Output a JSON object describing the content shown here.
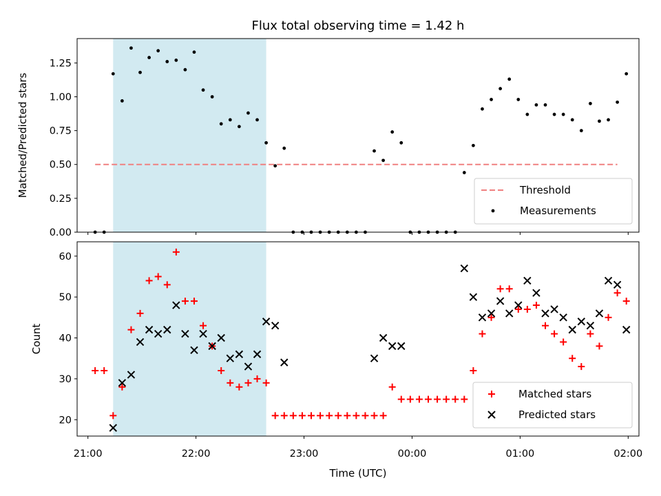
{
  "chart_data": {
    "type": "scatter",
    "title": "Flux total observing time = 1.42 h",
    "xlabel": "Time (UTC)",
    "x_ticks": [
      "21:00",
      "22:00",
      "23:00",
      "00:00",
      "01:00",
      "02:00"
    ],
    "shaded_region": {
      "start": "21:14",
      "end": "22:39",
      "color": "#add8e6"
    },
    "panels": [
      {
        "ylabel": "Matched/Predicted stars",
        "ylim": [
          0,
          1.43
        ],
        "y_ticks": [
          "0.00",
          "0.25",
          "0.50",
          "0.75",
          "1.00",
          "1.25"
        ],
        "threshold": {
          "name": "Threshold",
          "value": 0.5,
          "x_range": [
            "21:04",
            "01:54"
          ],
          "color": "#f08080"
        },
        "legend_position": "lower right",
        "series": [
          {
            "name": "Measurements",
            "marker": "dot",
            "color": "#000000",
            "points": [
              [
                "21:04",
                0
              ],
              [
                "21:09",
                0
              ],
              [
                "21:14",
                1.17
              ],
              [
                "21:19",
                0.97
              ],
              [
                "21:24",
                1.36
              ],
              [
                "21:29",
                1.18
              ],
              [
                "21:34",
                1.29
              ],
              [
                "21:39",
                1.34
              ],
              [
                "21:44",
                1.26
              ],
              [
                "21:49",
                1.27
              ],
              [
                "21:54",
                1.2
              ],
              [
                "21:59",
                1.33
              ],
              [
                "22:04",
                1.05
              ],
              [
                "22:09",
                1.0
              ],
              [
                "22:14",
                0.8
              ],
              [
                "22:19",
                0.83
              ],
              [
                "22:24",
                0.78
              ],
              [
                "22:29",
                0.88
              ],
              [
                "22:34",
                0.83
              ],
              [
                "22:39",
                0.66
              ],
              [
                "22:44",
                0.49
              ],
              [
                "22:49",
                0.62
              ],
              [
                "22:54",
                0
              ],
              [
                "22:59",
                0
              ],
              [
                "23:04",
                0
              ],
              [
                "23:09",
                0
              ],
              [
                "23:14",
                0
              ],
              [
                "23:19",
                0
              ],
              [
                "23:24",
                0
              ],
              [
                "23:29",
                0
              ],
              [
                "23:34",
                0
              ],
              [
                "23:39",
                0.6
              ],
              [
                "23:44",
                0.53
              ],
              [
                "23:49",
                0.74
              ],
              [
                "23:54",
                0.66
              ],
              [
                "23:59",
                0
              ],
              [
                "00:04",
                0
              ],
              [
                "00:09",
                0
              ],
              [
                "00:14",
                0
              ],
              [
                "00:19",
                0
              ],
              [
                "00:24",
                0
              ],
              [
                "00:29",
                0.44
              ],
              [
                "00:34",
                0.64
              ],
              [
                "00:39",
                0.91
              ],
              [
                "00:44",
                0.98
              ],
              [
                "00:49",
                1.06
              ],
              [
                "00:54",
                1.13
              ],
              [
                "00:59",
                0.98
              ],
              [
                "01:04",
                0.87
              ],
              [
                "01:09",
                0.94
              ],
              [
                "01:14",
                0.94
              ],
              [
                "01:19",
                0.87
              ],
              [
                "01:24",
                0.87
              ],
              [
                "01:29",
                0.83
              ],
              [
                "01:34",
                0.75
              ],
              [
                "01:39",
                0.95
              ],
              [
                "01:44",
                0.82
              ],
              [
                "01:49",
                0.83
              ],
              [
                "01:54",
                0.96
              ],
              [
                "01:59",
                1.17
              ]
            ]
          }
        ]
      },
      {
        "ylabel": "Count",
        "ylim": [
          16,
          63.5
        ],
        "y_ticks": [
          "20",
          "30",
          "40",
          "50",
          "60"
        ],
        "legend_position": "lower right",
        "series": [
          {
            "name": "Matched stars",
            "marker": "plus",
            "color": "#ff0000",
            "points": [
              [
                "21:04",
                32
              ],
              [
                "21:09",
                32
              ],
              [
                "21:14",
                21
              ],
              [
                "21:19",
                28
              ],
              [
                "21:24",
                42
              ],
              [
                "21:29",
                46
              ],
              [
                "21:34",
                54
              ],
              [
                "21:39",
                55
              ],
              [
                "21:44",
                53
              ],
              [
                "21:49",
                61
              ],
              [
                "21:54",
                49
              ],
              [
                "21:59",
                49
              ],
              [
                "22:04",
                43
              ],
              [
                "22:09",
                38
              ],
              [
                "22:14",
                32
              ],
              [
                "22:19",
                29
              ],
              [
                "22:24",
                28
              ],
              [
                "22:29",
                29
              ],
              [
                "22:34",
                30
              ],
              [
                "22:39",
                29
              ],
              [
                "22:44",
                21
              ],
              [
                "22:49",
                21
              ],
              [
                "22:54",
                21
              ],
              [
                "22:59",
                21
              ],
              [
                "23:04",
                21
              ],
              [
                "23:09",
                21
              ],
              [
                "23:14",
                21
              ],
              [
                "23:19",
                21
              ],
              [
                "23:24",
                21
              ],
              [
                "23:29",
                21
              ],
              [
                "23:34",
                21
              ],
              [
                "23:39",
                21
              ],
              [
                "23:44",
                21
              ],
              [
                "23:49",
                28
              ],
              [
                "23:54",
                25
              ],
              [
                "23:59",
                25
              ],
              [
                "00:04",
                25
              ],
              [
                "00:09",
                25
              ],
              [
                "00:14",
                25
              ],
              [
                "00:19",
                25
              ],
              [
                "00:24",
                25
              ],
              [
                "00:29",
                25
              ],
              [
                "00:34",
                32
              ],
              [
                "00:39",
                41
              ],
              [
                "00:44",
                45
              ],
              [
                "00:49",
                52
              ],
              [
                "00:54",
                52
              ],
              [
                "00:59",
                47
              ],
              [
                "01:04",
                47
              ],
              [
                "01:09",
                48
              ],
              [
                "01:14",
                43
              ],
              [
                "01:19",
                41
              ],
              [
                "01:24",
                39
              ],
              [
                "01:29",
                35
              ],
              [
                "01:34",
                33
              ],
              [
                "01:39",
                41
              ],
              [
                "01:44",
                38
              ],
              [
                "01:49",
                45
              ],
              [
                "01:54",
                51
              ],
              [
                "01:59",
                49
              ]
            ]
          },
          {
            "name": "Predicted stars",
            "marker": "x",
            "color": "#000000",
            "points": [
              [
                "21:14",
                18
              ],
              [
                "21:19",
                29
              ],
              [
                "21:24",
                31
              ],
              [
                "21:29",
                39
              ],
              [
                "21:34",
                42
              ],
              [
                "21:39",
                41
              ],
              [
                "21:44",
                42
              ],
              [
                "21:49",
                48
              ],
              [
                "21:54",
                41
              ],
              [
                "21:59",
                37
              ],
              [
                "22:04",
                41
              ],
              [
                "22:09",
                38
              ],
              [
                "22:14",
                40
              ],
              [
                "22:19",
                35
              ],
              [
                "22:24",
                36
              ],
              [
                "22:29",
                33
              ],
              [
                "22:34",
                36
              ],
              [
                "22:39",
                44
              ],
              [
                "22:44",
                43
              ],
              [
                "22:49",
                34
              ],
              [
                "23:39",
                35
              ],
              [
                "23:44",
                40
              ],
              [
                "23:49",
                38
              ],
              [
                "23:54",
                38
              ],
              [
                "00:29",
                57
              ],
              [
                "00:34",
                50
              ],
              [
                "00:39",
                45
              ],
              [
                "00:44",
                46
              ],
              [
                "00:49",
                49
              ],
              [
                "00:54",
                46
              ],
              [
                "00:59",
                48
              ],
              [
                "01:04",
                54
              ],
              [
                "01:09",
                51
              ],
              [
                "01:14",
                46
              ],
              [
                "01:19",
                47
              ],
              [
                "01:24",
                45
              ],
              [
                "01:29",
                42
              ],
              [
                "01:34",
                44
              ],
              [
                "01:39",
                43
              ],
              [
                "01:44",
                46
              ],
              [
                "01:49",
                54
              ],
              [
                "01:54",
                53
              ],
              [
                "01:59",
                42
              ]
            ]
          }
        ]
      }
    ]
  }
}
